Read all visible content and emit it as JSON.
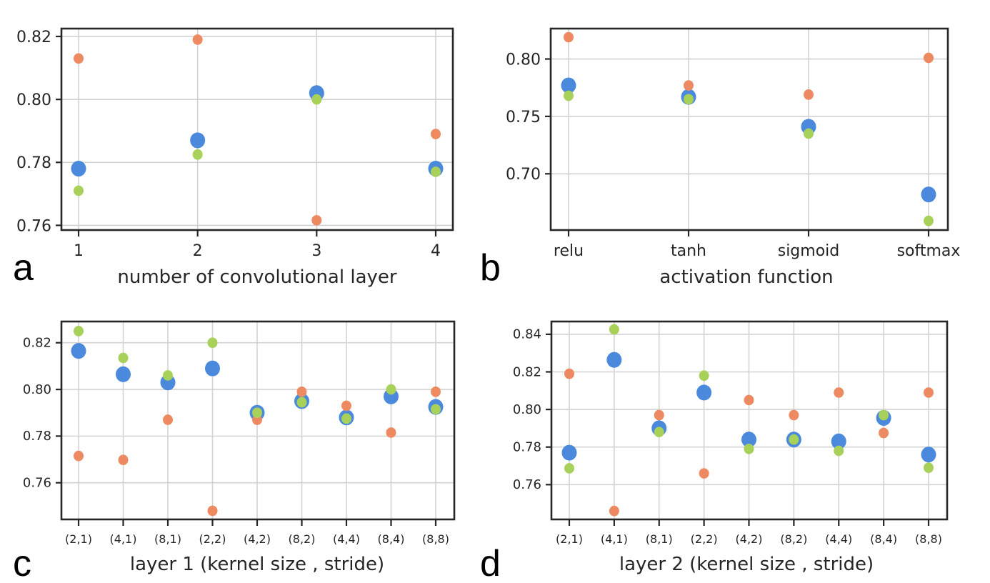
{
  "figure": {
    "panel_letters": [
      "a",
      "b",
      "c",
      "d"
    ],
    "colors": {
      "series_1": "#4a89dc",
      "series_2": "#ee8a62",
      "series_3": "#a8d15a",
      "grid": "#d3d3d3",
      "axes": "#262626"
    }
  },
  "chart_data": [
    {
      "panel": "a",
      "type": "scatter",
      "title": "",
      "xlabel": "number of convolutional layer",
      "ylabel": "",
      "categories": [
        "1",
        "2",
        "3",
        "4"
      ],
      "yticks": [
        "0.76",
        "0.78",
        "0.80",
        "0.82"
      ],
      "ylim": [
        0.7585,
        0.8225
      ],
      "grid": true,
      "legend": "none",
      "series": [
        {
          "name": "blue (large)",
          "color": "#4a89dc",
          "values": [
            0.778,
            0.787,
            0.802,
            0.778
          ]
        },
        {
          "name": "orange",
          "color": "#ee8a62",
          "values": [
            0.813,
            0.819,
            0.7616,
            0.789
          ]
        },
        {
          "name": "green",
          "color": "#a8d15a",
          "values": [
            0.771,
            0.7825,
            0.8,
            0.777
          ]
        }
      ]
    },
    {
      "panel": "b",
      "type": "scatter",
      "title": "",
      "xlabel": "activation function",
      "ylabel": "",
      "categories": [
        "relu",
        "tanh",
        "sigmoid",
        "softmax"
      ],
      "yticks": [
        "0.70",
        "0.75",
        "0.80"
      ],
      "ylim": [
        0.651,
        0.8265
      ],
      "grid": true,
      "legend": "none",
      "series": [
        {
          "name": "blue (large)",
          "color": "#4a89dc",
          "values": [
            0.777,
            0.767,
            0.741,
            0.682
          ]
        },
        {
          "name": "orange",
          "color": "#ee8a62",
          "values": [
            0.819,
            0.777,
            0.769,
            0.801
          ]
        },
        {
          "name": "green",
          "color": "#a8d15a",
          "values": [
            0.768,
            0.765,
            0.735,
            0.659
          ]
        }
      ]
    },
    {
      "panel": "c",
      "type": "scatter",
      "title": "",
      "xlabel": "layer 1 (kernel size , stride)",
      "ylabel": "",
      "categories": [
        "(2,1)",
        "(4,1)",
        "(8,1)",
        "(2,2)",
        "(4,2)",
        "(8,2)",
        "(4,4)",
        "(8,4)",
        "(8,8)"
      ],
      "yticks": [
        "0.76",
        "0.78",
        "0.80",
        "0.82"
      ],
      "ylim": [
        0.7443,
        0.8291
      ],
      "grid": true,
      "legend": "none",
      "series": [
        {
          "name": "blue (large)",
          "color": "#4a89dc",
          "values": [
            0.8165,
            0.8065,
            0.803,
            0.809,
            0.79,
            0.795,
            0.788,
            0.797,
            0.7925
          ]
        },
        {
          "name": "orange",
          "color": "#ee8a62",
          "values": [
            0.7715,
            0.7698,
            0.787,
            0.748,
            0.787,
            0.799,
            0.793,
            0.7815,
            0.799
          ]
        },
        {
          "name": "green",
          "color": "#a8d15a",
          "values": [
            0.825,
            0.8135,
            0.806,
            0.82,
            0.79,
            0.7945,
            0.7875,
            0.8,
            0.7915
          ]
        }
      ]
    },
    {
      "panel": "d",
      "type": "scatter",
      "title": "",
      "xlabel": "layer 2 (kernel size , stride)",
      "ylabel": "",
      "categories": [
        "(2,1)",
        "(4,1)",
        "(8,1)",
        "(2,2)",
        "(4,2)",
        "(8,2)",
        "(4,4)",
        "(8,4)",
        "(8,8)"
      ],
      "yticks": [
        "0.76",
        "0.78",
        "0.80",
        "0.82",
        "0.84"
      ],
      "ylim": [
        0.7415,
        0.8468
      ],
      "grid": true,
      "legend": "none",
      "series": [
        {
          "name": "blue (large)",
          "color": "#4a89dc",
          "values": [
            0.777,
            0.8264,
            0.79,
            0.809,
            0.784,
            0.784,
            0.783,
            0.7955,
            0.776
          ]
        },
        {
          "name": "orange",
          "color": "#ee8a62",
          "values": [
            0.819,
            0.746,
            0.797,
            0.766,
            0.805,
            0.797,
            0.809,
            0.7875,
            0.809
          ]
        },
        {
          "name": "green",
          "color": "#a8d15a",
          "values": [
            0.7687,
            0.8426,
            0.788,
            0.818,
            0.779,
            0.784,
            0.778,
            0.797,
            0.769
          ]
        }
      ]
    }
  ]
}
